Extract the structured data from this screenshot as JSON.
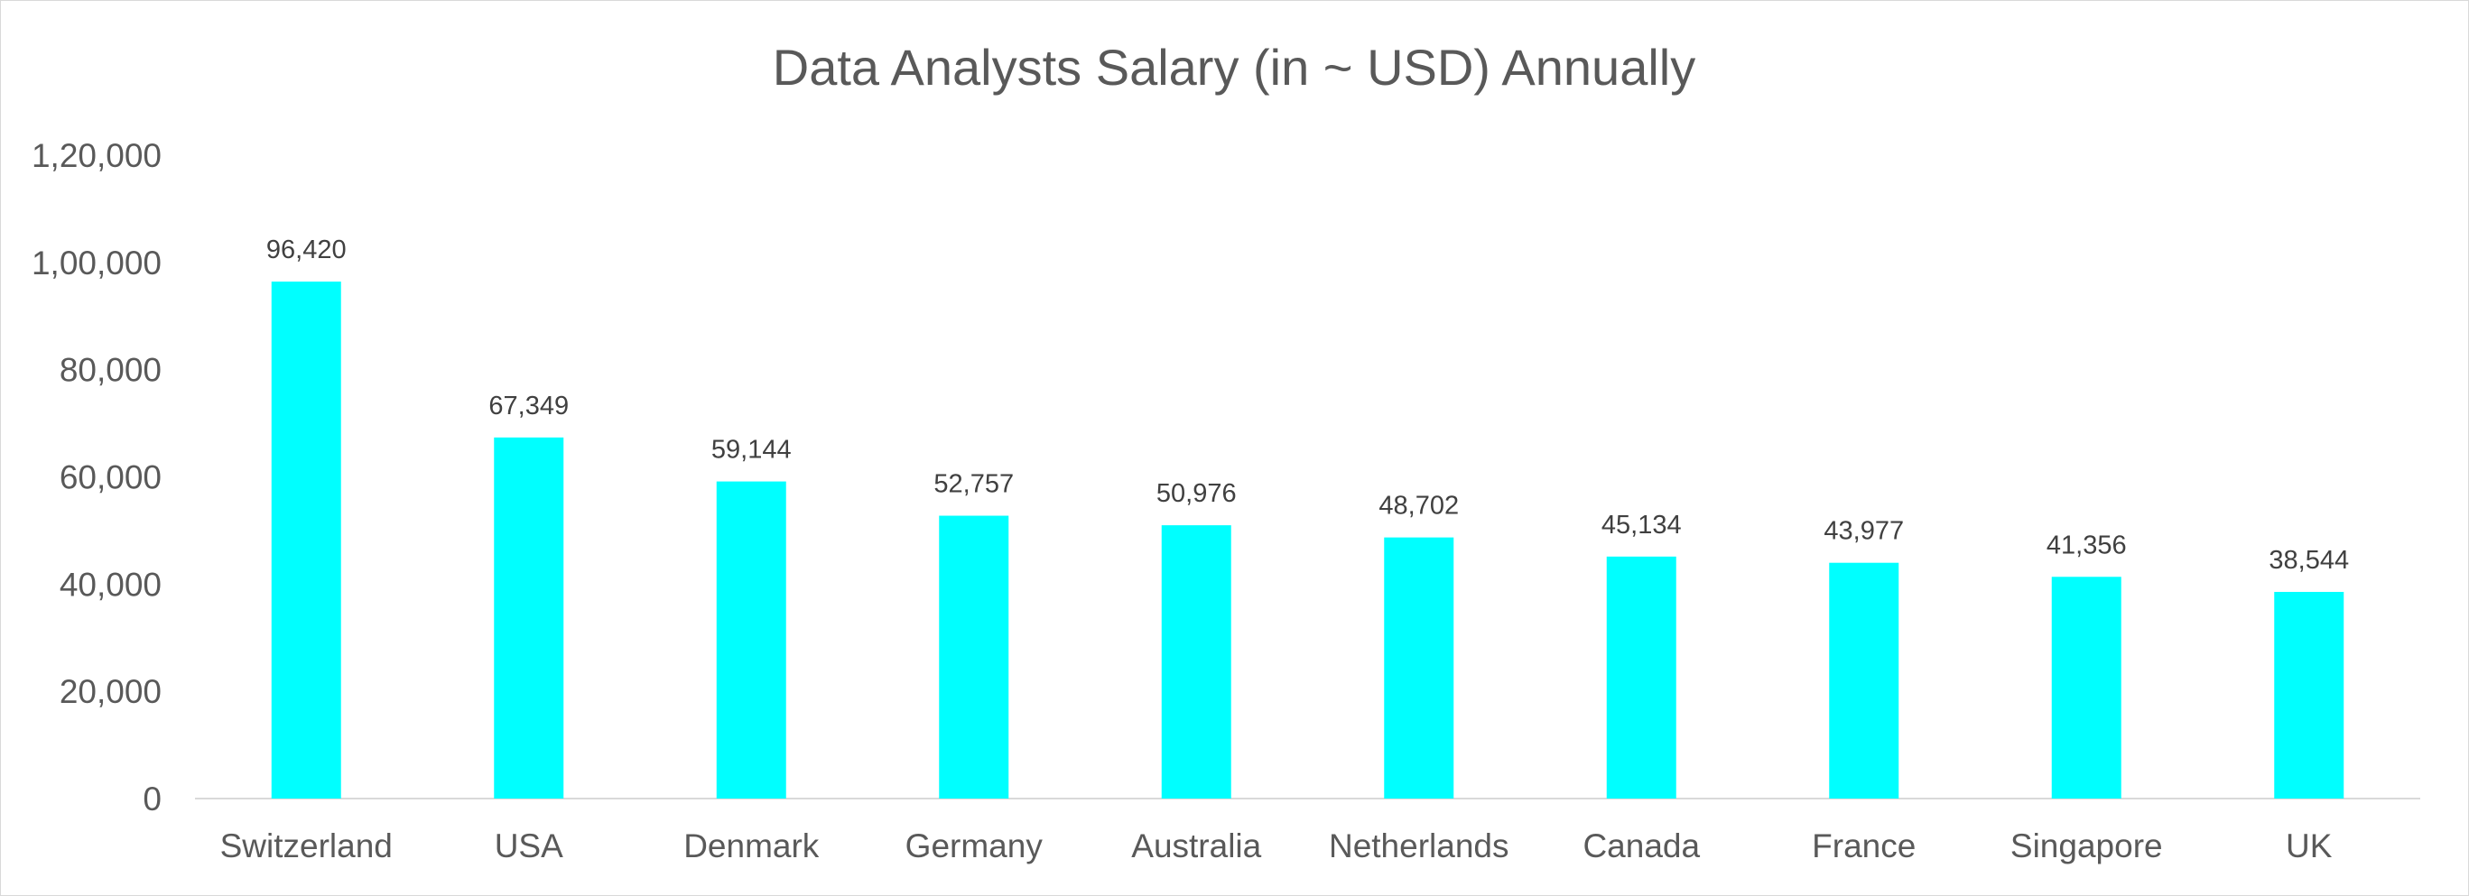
{
  "chart_data": {
    "type": "bar",
    "title": "Data Analysts Salary (in ~ USD) Annually",
    "xlabel": "",
    "ylabel": "",
    "categories": [
      "Switzerland",
      "USA",
      "Denmark",
      "Germany",
      "Australia",
      "Netherlands",
      "Canada",
      "France",
      "Singapore",
      "UK"
    ],
    "values": [
      96420,
      67349,
      59144,
      52757,
      50976,
      48702,
      45134,
      43977,
      41356,
      38544
    ],
    "value_labels": [
      "96,420",
      "67,349",
      "59,144",
      "52,757",
      "50,976",
      "48,702",
      "45,134",
      "43,977",
      "41,356",
      "38,544"
    ],
    "ylim": [
      0,
      120000
    ],
    "yticks": [
      0,
      20000,
      40000,
      60000,
      80000,
      100000,
      120000
    ],
    "ytick_labels": [
      "0",
      "20,000",
      "40,000",
      "60,000",
      "80,000",
      "1,00,000",
      "1,20,000"
    ],
    "grid": false,
    "legend": "none",
    "bar_color": "#00FFFF",
    "axis_color": "#d9d9d9"
  }
}
